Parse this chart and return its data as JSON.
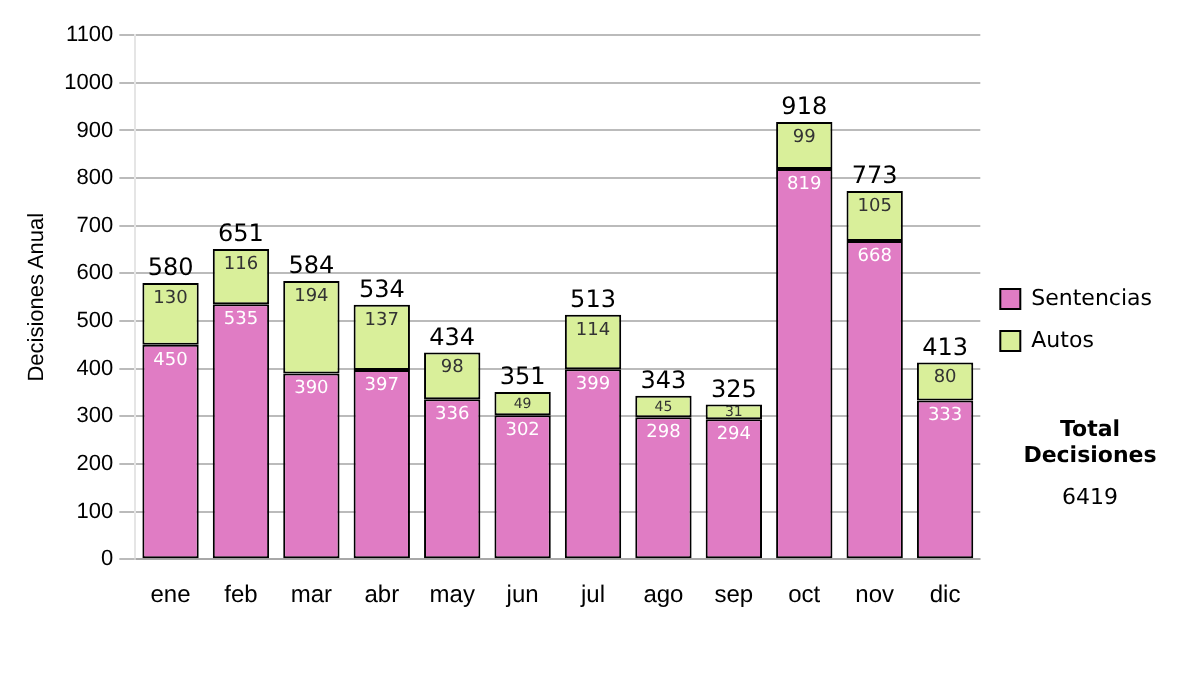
{
  "chart_data": {
    "type": "bar",
    "stacked": true,
    "ylabel": "Decisiones Anual",
    "categories": [
      "ene",
      "feb",
      "mar",
      "abr",
      "may",
      "jun",
      "jul",
      "ago",
      "sep",
      "oct",
      "nov",
      "dic"
    ],
    "series": [
      {
        "name": "Sentencias",
        "color": "#e07cc4",
        "values": [
          450,
          535,
          390,
          397,
          336,
          302,
          399,
          298,
          294,
          819,
          668,
          333
        ]
      },
      {
        "name": "Autos",
        "color": "#d9ef9a",
        "values": [
          130,
          116,
          194,
          137,
          98,
          49,
          114,
          45,
          31,
          99,
          105,
          80
        ]
      }
    ],
    "ylim": [
      0,
      1100
    ],
    "yticks": [
      0,
      100,
      200,
      300,
      400,
      500,
      600,
      700,
      800,
      900,
      1000,
      1100
    ],
    "grid": "y",
    "legend": "right",
    "data_labels": true,
    "totals": [
      "580",
      "651",
      "584",
      "534",
      "434",
      "351",
      "513",
      "343",
      "325",
      "918",
      "773",
      "413"
    ],
    "annotations": [
      "Total Decisiones",
      "6419"
    ]
  }
}
